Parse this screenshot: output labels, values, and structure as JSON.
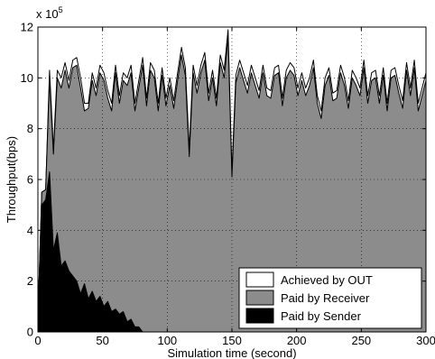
{
  "chart_data": {
    "type": "area",
    "title": "",
    "xlabel": "Simulation time (second)",
    "ylabel": "Throughput(bps)",
    "y_multiplier_label": "x 10",
    "y_multiplier_exponent": "5",
    "xlim": [
      0,
      300
    ],
    "ylim": [
      0,
      12
    ],
    "x_ticks": [
      0,
      50,
      100,
      150,
      200,
      250,
      300
    ],
    "y_ticks": [
      0,
      2,
      4,
      6,
      8,
      10,
      12
    ],
    "grid": "dotted",
    "legend_position": "bottom-right",
    "x": [
      0,
      3,
      6,
      9,
      12,
      15,
      18,
      21,
      24,
      27,
      30,
      33,
      36,
      39,
      42,
      45,
      48,
      51,
      54,
      57,
      60,
      63,
      66,
      69,
      72,
      75,
      78,
      81,
      84,
      87,
      90,
      93,
      96,
      99,
      102,
      105,
      108,
      111,
      114,
      117,
      120,
      123,
      126,
      129,
      132,
      135,
      138,
      141,
      144,
      147,
      150,
      153,
      156,
      159,
      162,
      165,
      168,
      171,
      174,
      177,
      180,
      183,
      186,
      189,
      192,
      195,
      198,
      201,
      204,
      207,
      210,
      213,
      216,
      219,
      222,
      225,
      228,
      231,
      234,
      237,
      240,
      243,
      246,
      249,
      252,
      255,
      258,
      261,
      264,
      267,
      270,
      273,
      276,
      279,
      282,
      285,
      288,
      291,
      294,
      297,
      300
    ],
    "series": [
      {
        "name": "Achieved by OUT",
        "color": "#ffffff",
        "values": [
          0.5,
          5.5,
          5.6,
          10.3,
          7.2,
          10.3,
          10.0,
          10.6,
          9.9,
          10.7,
          10.8,
          10.0,
          9.0,
          9.0,
          10.2,
          9.6,
          10.5,
          10.2,
          9.5,
          9.0,
          10.5,
          9.3,
          10.2,
          10.0,
          10.5,
          9.0,
          9.9,
          10.8,
          9.2,
          10.6,
          10.3,
          9.0,
          10.4,
          9.2,
          10.0,
          9.1,
          10.2,
          11.2,
          10.4,
          7.2,
          10.5,
          9.7,
          10.5,
          11.0,
          9.4,
          10.3,
          9.2,
          10.9,
          10.3,
          11.9,
          6.3,
          10.1,
          10.7,
          10.2,
          9.7,
          10.5,
          10.0,
          9.5,
          10.5,
          9.6,
          9.5,
          10.4,
          10.5,
          9.2,
          10.3,
          10.6,
          10.4,
          9.6,
          10.2,
          9.6,
          10.0,
          10.7,
          9.3,
          8.7,
          10.0,
          10.4,
          9.4,
          9.5,
          10.5,
          10.0,
          9.1,
          10.3,
          10.0,
          9.6,
          10.7,
          9.3,
          10.2,
          10.3,
          9.3,
          10.4,
          9.0,
          10.3,
          10.4,
          9.7,
          9.1,
          10.6,
          9.6,
          10.7,
          9.0,
          9.6,
          10.2
        ]
      },
      {
        "name": "Paid by Receiver",
        "color": "#8c8c8c",
        "values": [
          0.5,
          5.5,
          5.6,
          10.0,
          7.0,
          10.0,
          9.6,
          10.3,
          9.6,
          10.4,
          10.5,
          9.6,
          8.7,
          8.8,
          9.9,
          9.3,
          10.2,
          9.9,
          9.2,
          8.7,
          10.2,
          9.0,
          9.9,
          9.7,
          10.2,
          8.7,
          9.6,
          10.5,
          8.9,
          10.3,
          10.0,
          8.7,
          10.1,
          8.9,
          9.7,
          8.8,
          9.9,
          10.9,
          10.1,
          6.9,
          10.2,
          9.4,
          10.2,
          10.7,
          9.1,
          10.0,
          8.9,
          10.6,
          10.0,
          11.6,
          6.1,
          9.8,
          10.4,
          9.9,
          9.4,
          10.2,
          9.7,
          9.2,
          10.2,
          9.3,
          9.2,
          10.1,
          10.2,
          8.9,
          10.0,
          10.3,
          10.1,
          9.3,
          9.9,
          9.3,
          9.7,
          10.4,
          9.0,
          8.4,
          9.7,
          10.1,
          9.1,
          9.2,
          10.2,
          9.7,
          8.8,
          10.0,
          9.7,
          9.3,
          10.4,
          9.0,
          9.9,
          10.0,
          9.0,
          10.1,
          8.7,
          10.0,
          10.1,
          9.4,
          8.8,
          10.3,
          9.3,
          10.4,
          8.7,
          9.3,
          9.9
        ]
      },
      {
        "name": "Paid by Sender",
        "color": "#000000",
        "values": [
          0.5,
          5.0,
          5.2,
          6.3,
          3.2,
          3.9,
          2.6,
          2.8,
          2.4,
          2.2,
          2.0,
          1.5,
          1.9,
          1.3,
          1.6,
          1.2,
          1.4,
          1.0,
          1.2,
          0.8,
          0.9,
          0.7,
          0.8,
          0.4,
          0.5,
          0.2,
          0.2,
          0,
          0,
          0,
          0,
          0,
          0,
          0,
          0,
          0,
          0,
          0,
          0,
          0,
          0,
          0,
          0,
          0,
          0,
          0,
          0,
          0,
          0,
          0,
          0,
          0,
          0,
          0,
          0,
          0,
          0,
          0,
          0,
          0,
          0,
          0,
          0,
          0,
          0,
          0,
          0,
          0,
          0,
          0,
          0,
          0,
          0,
          0,
          0,
          0,
          0,
          0,
          0,
          0,
          0,
          0,
          0,
          0,
          0,
          0,
          0,
          0,
          0,
          0,
          0,
          0,
          0,
          0,
          0,
          0,
          0,
          0,
          0,
          0,
          0
        ]
      }
    ]
  }
}
